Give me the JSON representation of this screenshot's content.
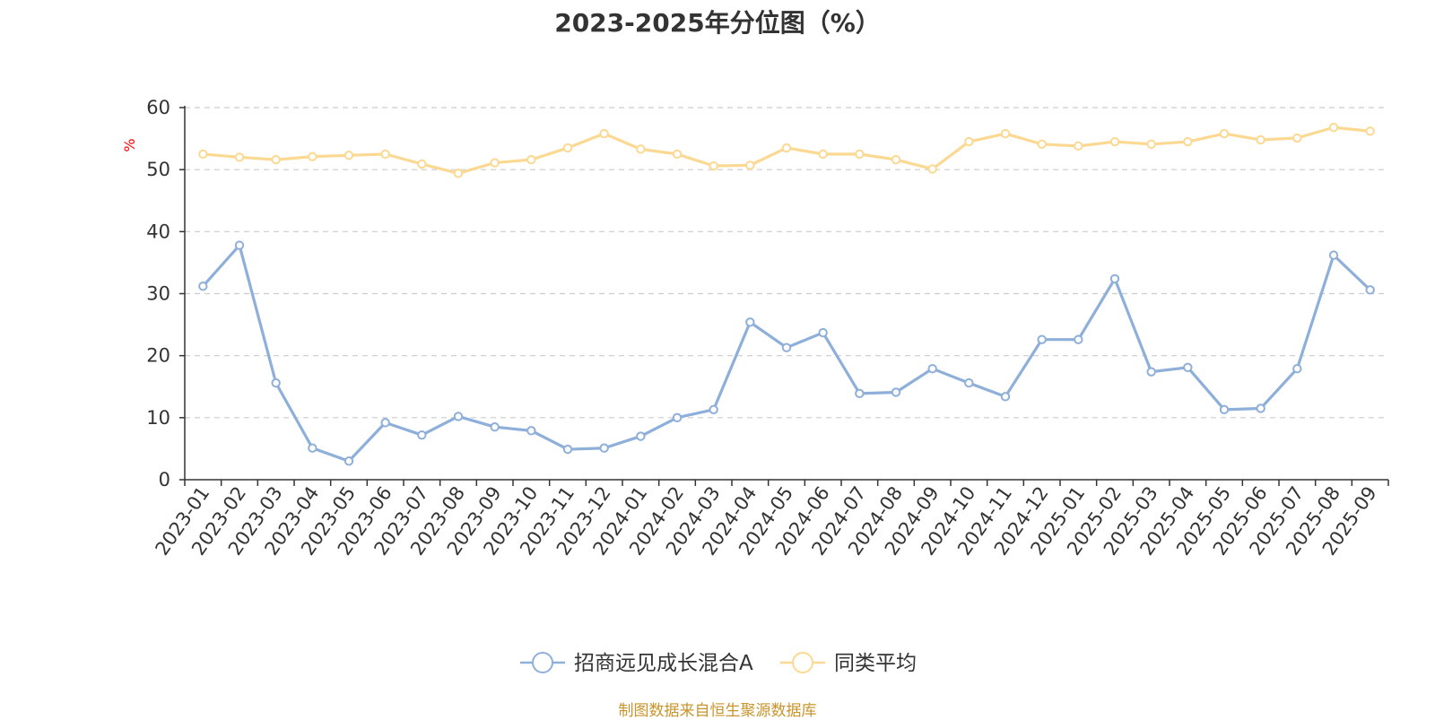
{
  "chart_data": {
    "type": "line",
    "title": "2023-2025年分位图（%）",
    "ylabel": "%",
    "ylim": [
      0,
      60
    ],
    "yticks": [
      0,
      10,
      20,
      30,
      40,
      50,
      60
    ],
    "grid": true,
    "legend_position": "bottom",
    "categories": [
      "2023-01",
      "2023-02",
      "2023-03",
      "2023-04",
      "2023-05",
      "2023-06",
      "2023-07",
      "2023-08",
      "2023-09",
      "2023-10",
      "2023-11",
      "2023-12",
      "2024-01",
      "2024-02",
      "2024-03",
      "2024-04",
      "2024-05",
      "2024-06",
      "2024-07",
      "2024-08",
      "2024-09",
      "2024-10",
      "2024-11",
      "2024-12",
      "2025-01",
      "2025-02",
      "2025-03",
      "2025-04",
      "2025-05",
      "2025-06",
      "2025-07",
      "2025-08",
      "2025-09"
    ],
    "series": [
      {
        "name": "招商远见成长混合A",
        "color": "#8eafd9",
        "values": [
          31.2,
          37.8,
          15.6,
          5.1,
          3.0,
          9.2,
          7.2,
          10.2,
          8.5,
          7.9,
          4.9,
          5.1,
          7.0,
          10.0,
          11.3,
          25.4,
          21.3,
          23.7,
          13.9,
          14.1,
          17.9,
          15.6,
          13.4,
          22.6,
          22.6,
          32.4,
          17.4,
          18.1,
          11.3,
          11.5,
          17.9,
          36.2,
          30.6
        ]
      },
      {
        "name": "同类平均",
        "color": "#fcd992",
        "values": [
          52.5,
          52.0,
          51.6,
          52.1,
          52.3,
          52.5,
          50.9,
          49.4,
          51.1,
          51.6,
          53.5,
          55.8,
          53.3,
          52.5,
          50.6,
          50.7,
          53.5,
          52.5,
          52.5,
          51.6,
          50.1,
          54.5,
          55.8,
          54.1,
          53.8,
          54.5,
          54.1,
          54.5,
          55.8,
          54.8,
          55.1,
          56.8,
          56.2
        ]
      }
    ]
  },
  "source_note": "制图数据来自恒生聚源数据库"
}
